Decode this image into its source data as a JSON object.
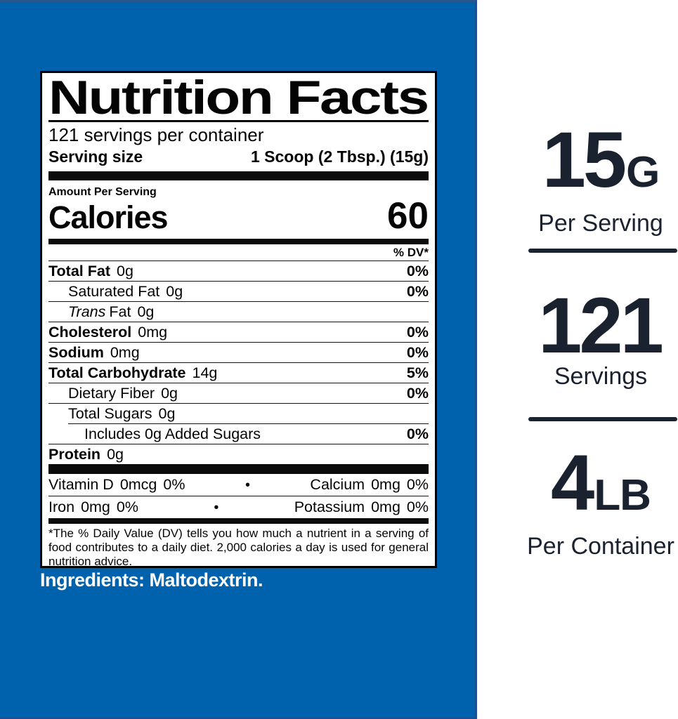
{
  "colors": {
    "background_blue": "#0061ad",
    "background_blue_edge": "#1d4f93",
    "stats_navy": "#1a2230",
    "label_background": "#ffffff",
    "label_ink": "#000000"
  },
  "label": {
    "title": "Nutrition Facts",
    "servings_per_container": "121 servings per container",
    "serving_size_label": "Serving size",
    "serving_size_value": "1 Scoop (2 Tbsp.) (15g)",
    "amount_per_serving": "Amount Per Serving",
    "calories_label": "Calories",
    "calories_value": "60",
    "dv_header": "% DV*",
    "rows": [
      {
        "name": "Total Fat",
        "amount": "0g",
        "dv": "0%"
      },
      {
        "name": "Saturated Fat",
        "amount": "0g",
        "dv": "0%"
      },
      {
        "name_italic": "Trans",
        "name": "Fat",
        "amount": "0g",
        "dv": ""
      },
      {
        "name": "Cholesterol",
        "amount": "0mg",
        "dv": "0%"
      },
      {
        "name": "Sodium",
        "amount": "0mg",
        "dv": "0%"
      },
      {
        "name": "Total Carbohydrate",
        "amount": "14g",
        "dv": "5%"
      },
      {
        "name": "Dietary Fiber",
        "amount": "0g",
        "dv": "0%"
      },
      {
        "name": "Total Sugars",
        "amount": "0g",
        "dv": ""
      },
      {
        "name": "Includes 0g Added Sugars",
        "amount": "",
        "dv": "0%"
      },
      {
        "name": "Protein",
        "amount": "0g",
        "dv": ""
      }
    ],
    "bullet": "•",
    "micros": [
      {
        "left": {
          "name": "Vitamin D",
          "amount": "0mcg",
          "dv": "0%"
        },
        "right": {
          "name": "Calcium",
          "amount": "0mg",
          "dv": "0%"
        }
      },
      {
        "left": {
          "name": "Iron",
          "amount": "0mg",
          "dv": "0%"
        },
        "right": {
          "name": "Potassium",
          "amount": "0mg",
          "dv": "0%"
        }
      }
    ],
    "footnote": "*The % Daily Value (DV) tells you how much a nutrient in a serving of food contributes to a daily diet.  2,000 calories a day is used for general nutrition advice."
  },
  "ingredients": "Ingredients: Maltodextrin.",
  "stats": [
    {
      "value": "15",
      "unit": "G",
      "label": "Per Serving"
    },
    {
      "value": "121",
      "unit": "",
      "label": "Servings"
    },
    {
      "value": "4",
      "unit": "LB",
      "label": "Per Container"
    }
  ]
}
